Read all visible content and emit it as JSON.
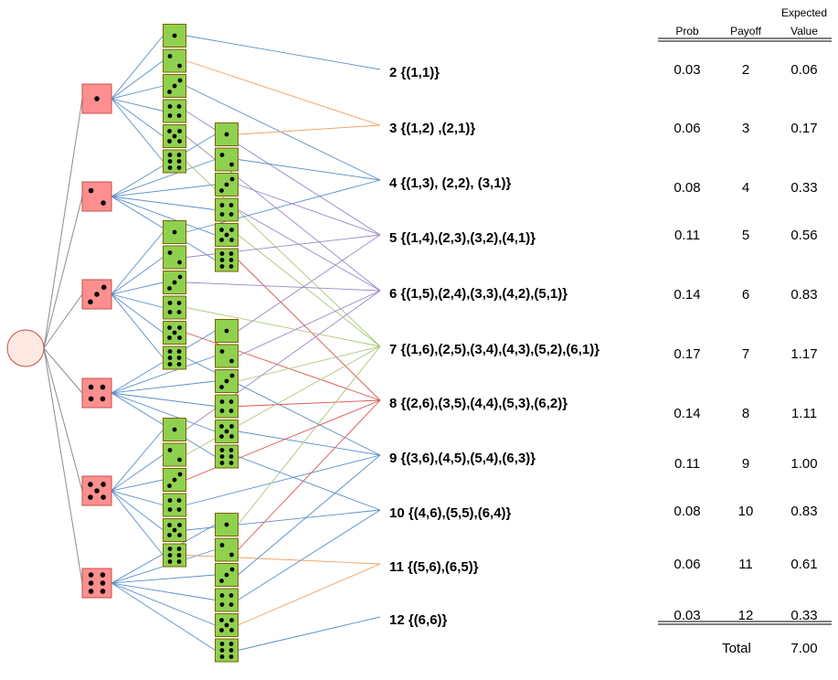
{
  "diagram": {
    "root": {
      "shape": "circle",
      "fill": "#fde9e1",
      "stroke": "#c0504d"
    },
    "first_die": {
      "fill": "#ff8f8f",
      "stroke": "#c0504d",
      "faces": [
        1,
        2,
        3,
        4,
        5,
        6
      ]
    },
    "second_die": {
      "fill": "#8fd14f",
      "stroke": "#7f6000",
      "faces": [
        1,
        2,
        3,
        4,
        5,
        6
      ]
    },
    "edge_colors": {
      "root_to_first": "#8c8c8c",
      "first_to_second": "#5b8fc9",
      "second_to_sum": [
        "#5b8fc9",
        "#f0a060",
        "#5b8fc9",
        "#9b87c7",
        "#9b87c7",
        "#a9c77b",
        "#d9534f",
        "#5b8fc9"
      ]
    }
  },
  "outcomes": [
    {
      "sum": 2,
      "label": "2 {(1,1)}"
    },
    {
      "sum": 3,
      "label": "3 {(1,2) ,(2,1)}"
    },
    {
      "sum": 4,
      "label": "4 {(1,3), (2,2), (3,1)}"
    },
    {
      "sum": 5,
      "label": "5 {(1,4),(2,3),(3,2),(4,1)}"
    },
    {
      "sum": 6,
      "label": "6 {(1,5),(2,4),(3,3),(4,2),(5,1)}"
    },
    {
      "sum": 7,
      "label": "7 {(1,6),(2,5),(3,4),(4,3),(5,2),(6,1)}"
    },
    {
      "sum": 8,
      "label": "8 {(2,6),(3,5),(4,4),(5,3),(6,2)}"
    },
    {
      "sum": 9,
      "label": "9 {(3,6),(4,5),(5,4),(6,3)}"
    },
    {
      "sum": 10,
      "label": "10 {(4,6),(5,5),(6,4)}"
    },
    {
      "sum": 11,
      "label": "11 {(5,6),(6,5)}"
    },
    {
      "sum": 12,
      "label": "12 {(6,6)}"
    }
  ],
  "table": {
    "headers": {
      "prob": "Prob",
      "payoff": "Payoff",
      "ev_line1": "Expected",
      "ev_line2": "Value"
    },
    "rows": [
      {
        "prob": "0.03",
        "payoff": "2",
        "ev": "0.06"
      },
      {
        "prob": "0.06",
        "payoff": "3",
        "ev": "0.17"
      },
      {
        "prob": "0.08",
        "payoff": "4",
        "ev": "0.33"
      },
      {
        "prob": "0.11",
        "payoff": "5",
        "ev": "0.56"
      },
      {
        "prob": "0.14",
        "payoff": "6",
        "ev": "0.83"
      },
      {
        "prob": "0.17",
        "payoff": "7",
        "ev": "1.17"
      },
      {
        "prob": "0.14",
        "payoff": "8",
        "ev": "1.11"
      },
      {
        "prob": "0.11",
        "payoff": "9",
        "ev": "1.00"
      },
      {
        "prob": "0.08",
        "payoff": "10",
        "ev": "0.83"
      },
      {
        "prob": "0.06",
        "payoff": "11",
        "ev": "0.61"
      },
      {
        "prob": "0.03",
        "payoff": "12",
        "ev": "0.33"
      }
    ],
    "total_label": "Total",
    "total_value": "7.00"
  }
}
